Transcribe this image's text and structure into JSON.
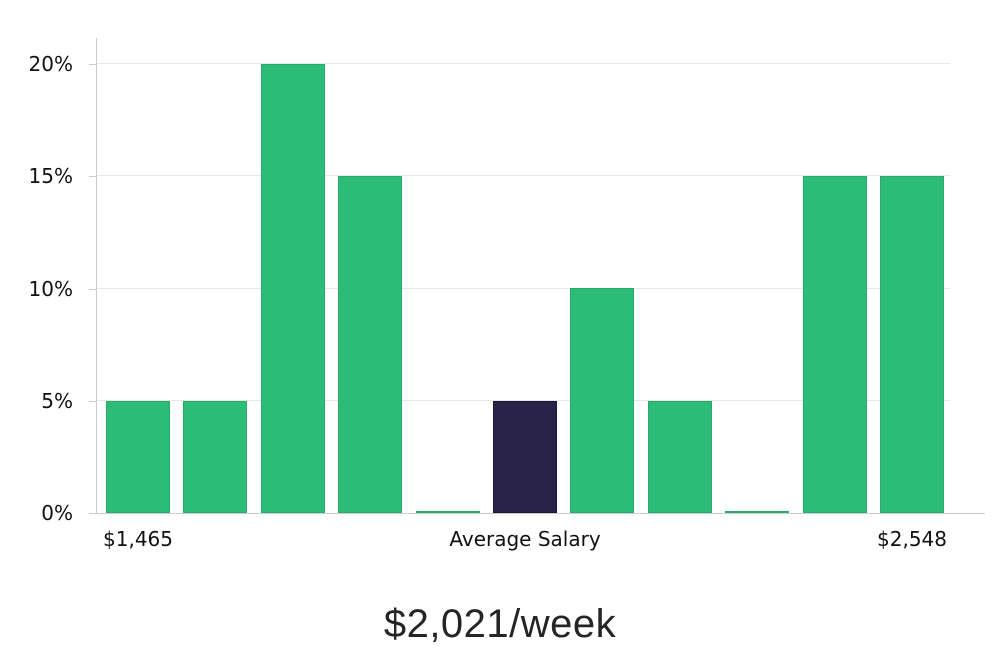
{
  "chart_data": {
    "type": "bar",
    "title": "$2,021/week",
    "xlabel": "",
    "ylabel": "",
    "legend": "none",
    "grid": "horizontal",
    "ylim": [
      0,
      21.2
    ],
    "y_ticks": [
      {
        "value": 0,
        "label": "0%"
      },
      {
        "value": 5,
        "label": "5%"
      },
      {
        "value": 10,
        "label": "10%"
      },
      {
        "value": 15,
        "label": "15%"
      },
      {
        "value": 20,
        "label": "20%"
      }
    ],
    "values": [
      5,
      5,
      20,
      15,
      0.1,
      5,
      10,
      5,
      0.1,
      15,
      15
    ],
    "highlight_index": 5,
    "highlight_meaning": "Average Salary",
    "x_tick_labels": [
      {
        "bar_index": 0,
        "label": "$1,465"
      },
      {
        "bar_index": 5,
        "label": "Average Salary"
      },
      {
        "bar_index": 10,
        "label": "$2,548"
      }
    ],
    "colors": {
      "bar": "#2cbc77",
      "bar_border": "#27aa6c",
      "highlight_bar": "#292349",
      "highlight_bar_border": "#1c1834",
      "gridline": "#e6e6e6",
      "axis_line": "#cccccc",
      "label_text": "#111111",
      "title_text": "#252525"
    }
  }
}
